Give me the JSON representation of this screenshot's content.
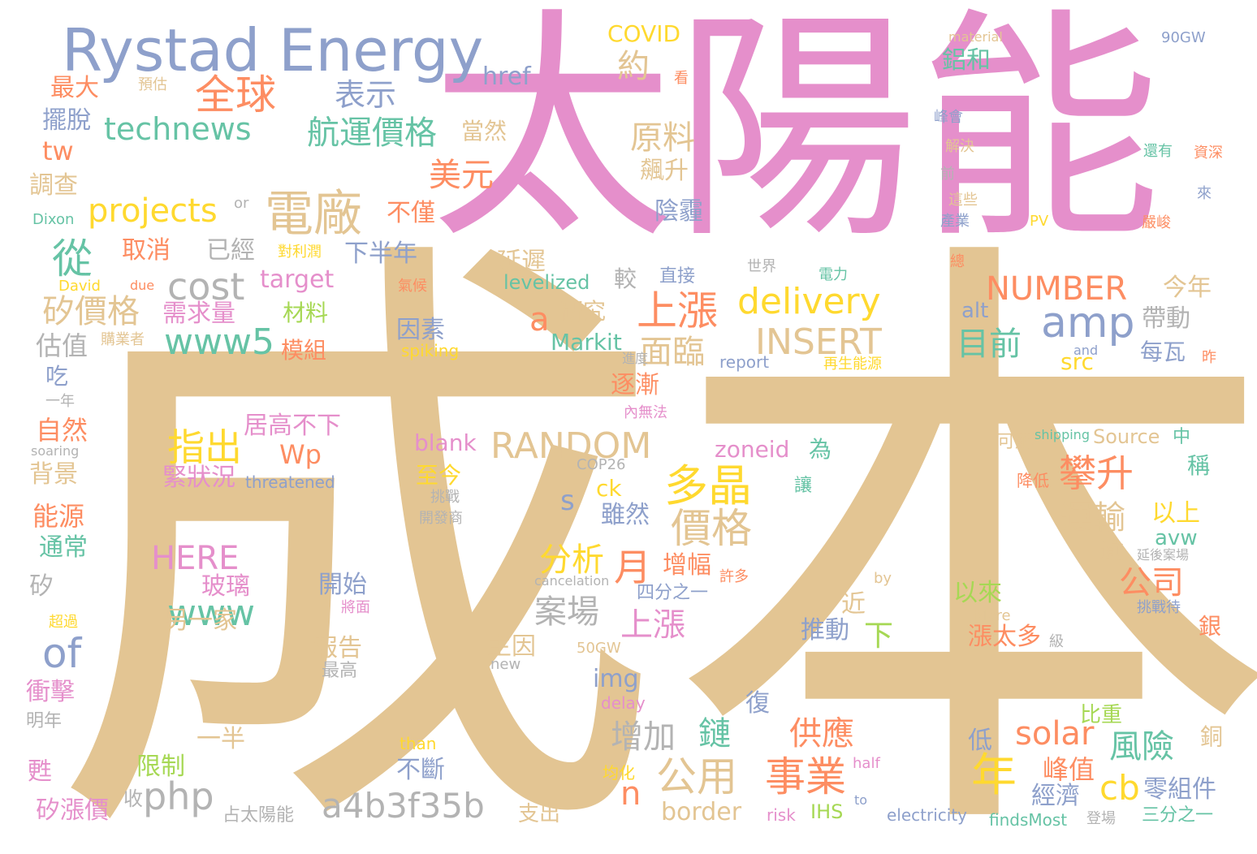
{
  "words": [
    {
      "text": "成本",
      "color": "#e3c593"
    },
    {
      "text": "太陽能",
      "color": "#e58fcb"
    },
    {
      "text": "Rystad Energy",
      "color": "#8ea0cb"
    },
    {
      "text": "電廠",
      "color": "#e3c593"
    },
    {
      "text": "全球",
      "color": "#fd8d62"
    },
    {
      "text": "表示",
      "color": "#8ea0cb"
    },
    {
      "text": "約",
      "color": "#e3c593"
    },
    {
      "text": "technews",
      "color": "#66c3a5"
    },
    {
      "text": "航運價格",
      "color": "#66c3a5"
    },
    {
      "text": "原料",
      "color": "#e3c593"
    },
    {
      "text": "美元",
      "color": "#fd8d62"
    },
    {
      "text": "projects",
      "color": "#ffd92f"
    },
    {
      "text": "從",
      "color": "#66c3a5"
    },
    {
      "text": "cost",
      "color": "#b3b3b3"
    },
    {
      "text": "矽價格",
      "color": "#e3c593"
    },
    {
      "text": "上漲",
      "color": "#fd8d62"
    },
    {
      "text": "delivery",
      "color": "#ffd92f"
    },
    {
      "text": "NUMBER",
      "color": "#fd8d62"
    },
    {
      "text": "amp",
      "color": "#8ea0cb"
    },
    {
      "text": "INSERT",
      "color": "#e3c593"
    },
    {
      "text": "目前",
      "color": "#66c3a5"
    },
    {
      "text": "www5",
      "color": "#66c3a5"
    },
    {
      "text": "面臨",
      "color": "#e3c593"
    },
    {
      "text": "a",
      "color": "#fd8d62"
    },
    {
      "text": "RANDOM",
      "color": "#e3c593"
    },
    {
      "text": "指出",
      "color": "#ffd92f"
    },
    {
      "text": "多晶",
      "color": "#ffd92f"
    },
    {
      "text": "價格",
      "color": "#e3c593"
    },
    {
      "text": "攀升",
      "color": "#fd8d62"
    },
    {
      "text": "運輸",
      "color": "#e3c593"
    },
    {
      "text": "HERE",
      "color": "#e58fcb"
    },
    {
      "text": "分析",
      "color": "#ffd92f"
    },
    {
      "text": "月",
      "color": "#fd8d62"
    },
    {
      "text": "公司",
      "color": "#fd8d62"
    },
    {
      "text": "of",
      "color": "#8ea0cb"
    },
    {
      "text": "www",
      "color": "#66c3a5"
    },
    {
      "text": "案場",
      "color": "#b3b3b3"
    },
    {
      "text": "上漲",
      "color": "#e58fcb"
    },
    {
      "text": "php",
      "color": "#b3b3b3"
    },
    {
      "text": "a4b3f35b",
      "color": "#b3b3b3"
    },
    {
      "text": "公用",
      "color": "#e3c593"
    },
    {
      "text": "事業",
      "color": "#fd8d62"
    },
    {
      "text": "年",
      "color": "#ffd92f"
    },
    {
      "text": "solar",
      "color": "#fd8d62"
    },
    {
      "text": "風險",
      "color": "#66c3a5"
    },
    {
      "text": "cb",
      "color": "#ffd92f"
    },
    {
      "text": "增加",
      "color": "#b3b3b3"
    },
    {
      "text": "鏈",
      "color": "#66c3a5"
    },
    {
      "text": "供應",
      "color": "#fd8d62"
    },
    {
      "text": "n",
      "color": "#fd8d62"
    },
    {
      "text": "border",
      "color": "#e3c593"
    },
    {
      "text": "零組件",
      "color": "#8ea0cb"
    },
    {
      "text": "峰值",
      "color": "#fd8d62"
    },
    {
      "text": "經濟",
      "color": "#8ea0cb"
    },
    {
      "text": "COVID",
      "color": "#ffd92f"
    },
    {
      "text": "href",
      "color": "#8ea0cb"
    },
    {
      "text": "最大",
      "color": "#fd8d62"
    },
    {
      "text": "擺脫",
      "color": "#8ea0cb"
    },
    {
      "text": "tw",
      "color": "#fd8d62"
    },
    {
      "text": "調查",
      "color": "#e3c593"
    },
    {
      "text": "Dixon",
      "color": "#66c3a5"
    },
    {
      "text": "預估",
      "color": "#e3c593"
    },
    {
      "text": "看",
      "color": "#fd8d62"
    },
    {
      "text": "material",
      "color": "#e3c593"
    },
    {
      "text": "90GW",
      "color": "#8ea0cb"
    },
    {
      "text": "鋁和",
      "color": "#66c3a5"
    },
    {
      "text": "當然",
      "color": "#e3c593"
    },
    {
      "text": "峰會",
      "color": "#8ea0cb"
    },
    {
      "text": "解決",
      "color": "#e3c593"
    },
    {
      "text": "還有",
      "color": "#66c3a5"
    },
    {
      "text": "資深",
      "color": "#fd8d62"
    },
    {
      "text": "飆升",
      "color": "#e3c593"
    },
    {
      "text": "前",
      "color": "#b3b3b3"
    },
    {
      "text": "這些",
      "color": "#e3c593"
    },
    {
      "text": "來",
      "color": "#8ea0cb"
    },
    {
      "text": "不僅",
      "color": "#fd8d62"
    },
    {
      "text": "陰霾",
      "color": "#8ea0cb"
    },
    {
      "text": "產業",
      "color": "#8ea0cb"
    },
    {
      "text": "PV",
      "color": "#ffd92f"
    },
    {
      "text": "嚴峻",
      "color": "#fd8d62"
    },
    {
      "text": "or",
      "color": "#b3b3b3"
    },
    {
      "text": "取消",
      "color": "#fd8d62"
    },
    {
      "text": "已經",
      "color": "#b3b3b3"
    },
    {
      "text": "對利潤",
      "color": "#ffd92f"
    },
    {
      "text": "下半年",
      "color": "#8ea0cb"
    },
    {
      "text": "延遲",
      "color": "#e3c593"
    },
    {
      "text": "總",
      "color": "#fd8d62"
    },
    {
      "text": "世界",
      "color": "#b3b3b3"
    },
    {
      "text": "直接",
      "color": "#8ea0cb"
    },
    {
      "text": "電力",
      "color": "#66c3a5"
    },
    {
      "text": "David",
      "color": "#ffd92f"
    },
    {
      "text": "due",
      "color": "#fd8d62"
    },
    {
      "text": "target",
      "color": "#e58fcb"
    },
    {
      "text": "氣候",
      "color": "#fd8d62"
    },
    {
      "text": "levelized",
      "color": "#66c3a5"
    },
    {
      "text": "較",
      "color": "#b3b3b3"
    },
    {
      "text": "今年",
      "color": "#e3c593"
    },
    {
      "text": "需求量",
      "color": "#e58fcb"
    },
    {
      "text": "材料",
      "color": "#a6d854"
    },
    {
      "text": "研究",
      "color": "#e3c593"
    },
    {
      "text": "alt",
      "color": "#8ea0cb"
    },
    {
      "text": "帶動",
      "color": "#b3b3b3"
    },
    {
      "text": "估值",
      "color": "#b3b3b3"
    },
    {
      "text": "購業者",
      "color": "#e3c593"
    },
    {
      "text": "模組",
      "color": "#fd8d62"
    },
    {
      "text": "因素",
      "color": "#8ea0cb"
    },
    {
      "text": "spiking",
      "color": "#ffd92f"
    },
    {
      "text": "Markit",
      "color": "#66c3a5"
    },
    {
      "text": "進度",
      "color": "#b3b3b3"
    },
    {
      "text": "report",
      "color": "#8ea0cb"
    },
    {
      "text": "and",
      "color": "#8ea0cb"
    },
    {
      "text": "再生能源",
      "color": "#ffd92f"
    },
    {
      "text": "每瓦",
      "color": "#8ea0cb"
    },
    {
      "text": "src",
      "color": "#ffd92f"
    },
    {
      "text": "昨",
      "color": "#fd8d62"
    },
    {
      "text": "吃",
      "color": "#8ea0cb"
    },
    {
      "text": "一年",
      "color": "#b3b3b3"
    },
    {
      "text": "逐漸",
      "color": "#fd8d62"
    },
    {
      "text": "內無法",
      "color": "#e58fcb"
    },
    {
      "text": "自然",
      "color": "#fd8d62"
    },
    {
      "text": "居高不下",
      "color": "#e58fcb"
    },
    {
      "text": "blank",
      "color": "#e58fcb"
    },
    {
      "text": "zoneid",
      "color": "#e58fcb"
    },
    {
      "text": "為",
      "color": "#66c3a5"
    },
    {
      "text": "shipping",
      "color": "#66c3a5"
    },
    {
      "text": "可解",
      "color": "#e3c593"
    },
    {
      "text": "Source",
      "color": "#e3c593"
    },
    {
      "text": "中",
      "color": "#66c3a5"
    },
    {
      "text": "soaring",
      "color": "#b3b3b3"
    },
    {
      "text": "Wp",
      "color": "#fd8d62"
    },
    {
      "text": "COP26",
      "color": "#b3b3b3"
    },
    {
      "text": "稱",
      "color": "#66c3a5"
    },
    {
      "text": "背景",
      "color": "#e3c593"
    },
    {
      "text": "緊狀況",
      "color": "#e58fcb"
    },
    {
      "text": "threatened",
      "color": "#8ea0cb"
    },
    {
      "text": "至今",
      "color": "#ffd92f"
    },
    {
      "text": "ck",
      "color": "#ffd92f"
    },
    {
      "text": "讓",
      "color": "#66c3a5"
    },
    {
      "text": "降低",
      "color": "#fd8d62"
    },
    {
      "text": "挑戰",
      "color": "#b3b3b3"
    },
    {
      "text": "s",
      "color": "#8ea0cb"
    },
    {
      "text": "雖然",
      "color": "#8ea0cb"
    },
    {
      "text": "開發商",
      "color": "#b3b3b3"
    },
    {
      "text": "以上",
      "color": "#ffd92f"
    },
    {
      "text": "能源",
      "color": "#fd8d62"
    },
    {
      "text": "通常",
      "color": "#66c3a5"
    },
    {
      "text": "avw",
      "color": "#66c3a5"
    },
    {
      "text": "逾",
      "color": "#e3c593"
    },
    {
      "text": "延後案場",
      "color": "#b3b3b3"
    },
    {
      "text": "增幅",
      "color": "#fd8d62"
    },
    {
      "text": "許多",
      "color": "#fd8d62"
    },
    {
      "text": "矽",
      "color": "#b3b3b3"
    },
    {
      "text": "玻璃",
      "color": "#e58fcb"
    },
    {
      "text": "開始",
      "color": "#8ea0cb"
    },
    {
      "text": "cancelation",
      "color": "#b3b3b3"
    },
    {
      "text": "by",
      "color": "#e3c593"
    },
    {
      "text": "四分之一",
      "color": "#8ea0cb"
    },
    {
      "text": "以來",
      "color": "#a6d854"
    },
    {
      "text": "挑戰待",
      "color": "#8ea0cb"
    },
    {
      "text": "超過",
      "color": "#ffd92f"
    },
    {
      "text": "將面",
      "color": "#e58fcb"
    },
    {
      "text": "近",
      "color": "#e3c593"
    },
    {
      "text": "More",
      "color": "#e3c593"
    },
    {
      "text": "銀",
      "color": "#fd8d62"
    },
    {
      "text": "另一家",
      "color": "#e3c593"
    },
    {
      "text": "報告",
      "color": "#e3c593"
    },
    {
      "text": "主因",
      "color": "#e3c593"
    },
    {
      "text": "推動",
      "color": "#8ea0cb"
    },
    {
      "text": "下",
      "color": "#a6d854"
    },
    {
      "text": "漲太多",
      "color": "#fd8d62"
    },
    {
      "text": "級",
      "color": "#b3b3b3"
    },
    {
      "text": "最高",
      "color": "#b3b3b3"
    },
    {
      "text": "50GW",
      "color": "#e3c593"
    },
    {
      "text": "new",
      "color": "#b3b3b3"
    },
    {
      "text": "衝擊",
      "color": "#e58fcb"
    },
    {
      "text": "img",
      "color": "#8ea0cb"
    },
    {
      "text": "delay",
      "color": "#e58fcb"
    },
    {
      "text": "復",
      "color": "#8ea0cb"
    },
    {
      "text": "明年",
      "color": "#b3b3b3"
    },
    {
      "text": "一半",
      "color": "#e3c593"
    },
    {
      "text": "比重",
      "color": "#a6d854"
    },
    {
      "text": "銅",
      "color": "#e3c593"
    },
    {
      "text": "限制",
      "color": "#a6d854"
    },
    {
      "text": "than",
      "color": "#ffd92f"
    },
    {
      "text": "低",
      "color": "#8ea0cb"
    },
    {
      "text": "甦",
      "color": "#e58fcb"
    },
    {
      "text": "不斷",
      "color": "#8ea0cb"
    },
    {
      "text": "均化",
      "color": "#ffd92f"
    },
    {
      "text": "half",
      "color": "#e58fcb"
    },
    {
      "text": "矽漲價",
      "color": "#e58fcb"
    },
    {
      "text": "收",
      "color": "#b3b3b3"
    },
    {
      "text": "占太陽能",
      "color": "#b3b3b3"
    },
    {
      "text": "支出",
      "color": "#e3c593"
    },
    {
      "text": "risk",
      "color": "#e58fcb"
    },
    {
      "text": "IHS",
      "color": "#a6d854"
    },
    {
      "text": "to",
      "color": "#8ea0cb"
    },
    {
      "text": "electricity",
      "color": "#8ea0cb"
    },
    {
      "text": "findsMost",
      "color": "#66c3a5"
    },
    {
      "text": "登場",
      "color": "#b3b3b3"
    },
    {
      "text": "三分之一",
      "color": "#66c3a5"
    }
  ]
}
